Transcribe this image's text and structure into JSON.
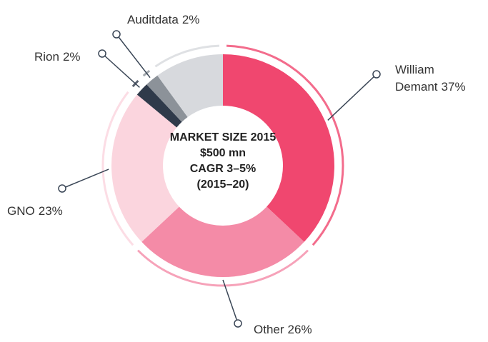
{
  "chart_data": {
    "type": "donut",
    "center_text": [
      "MARKET SIZE 2015",
      "$500 mn",
      "CAGR 3–5%",
      "(2015–20)"
    ],
    "categories": [
      "William Demant",
      "Other",
      "GNO",
      "Rion",
      "Auditdata",
      null
    ],
    "values": [
      37,
      26,
      23,
      2,
      2,
      10
    ],
    "value_labels": [
      "37%",
      "26%",
      "23%",
      "2%",
      "2%",
      null
    ],
    "colors": [
      "#f0476f",
      "#f48ba7",
      "#fbd5de",
      "#2f3a4a",
      "#8c9299",
      "#d7d9dd"
    ]
  }
}
